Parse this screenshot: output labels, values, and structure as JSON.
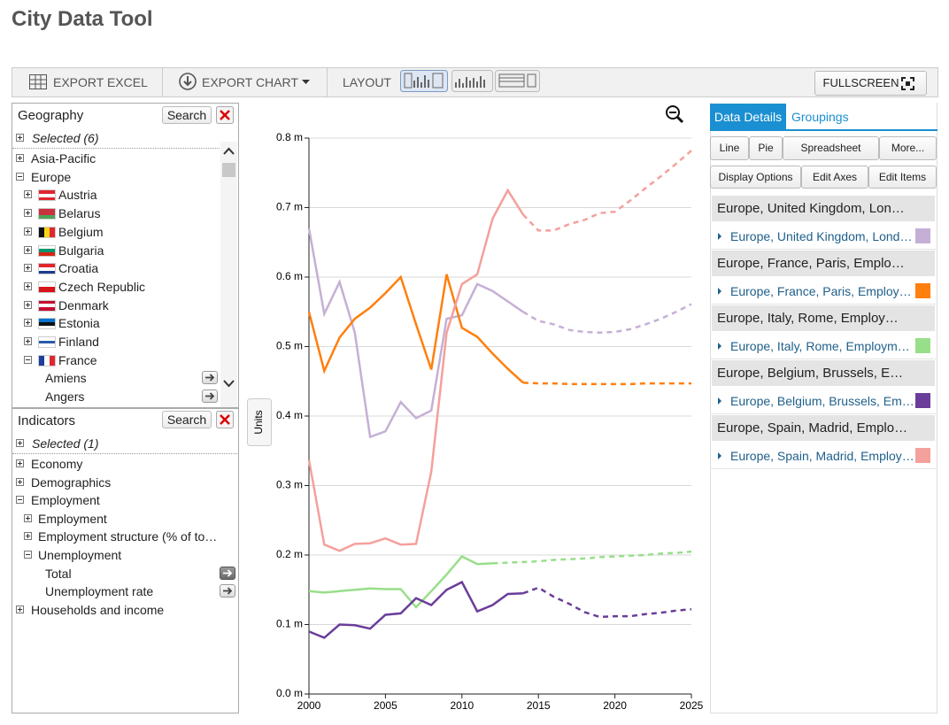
{
  "header": {
    "title": "City Data Tool"
  },
  "toolbar": {
    "export_excel": "EXPORT EXCEL",
    "export_chart": "EXPORT CHART",
    "layout": "LAYOUT",
    "fullscreen": "FULLSCREEN"
  },
  "geography": {
    "title": "Geography",
    "search": "Search",
    "selected": "Selected (6)",
    "items": [
      {
        "label": "Asia-Pacific"
      },
      {
        "label": "Europe",
        "children": [
          {
            "label": "Austria",
            "flag": {
              "dir": "h",
              "colors": [
                "#e0262f",
                "#ffffff",
                "#e0262f"
              ]
            }
          },
          {
            "label": "Belarus",
            "flag": {
              "dir": "h",
              "colors": [
                "#c8313e",
                "#c8313e",
                "#4aa657"
              ]
            }
          },
          {
            "label": "Belgium",
            "flag": {
              "dir": "v",
              "colors": [
                "#111111",
                "#f7d417",
                "#e0262f"
              ]
            }
          },
          {
            "label": "Bulgaria",
            "flag": {
              "dir": "h",
              "colors": [
                "#ffffff",
                "#00966e",
                "#d62612"
              ]
            }
          },
          {
            "label": "Croatia",
            "flag": {
              "dir": "h",
              "colors": [
                "#e0262f",
                "#ffffff",
                "#1a3d8f"
              ]
            }
          },
          {
            "label": "Czech Republic",
            "flag": {
              "dir": "h",
              "colors": [
                "#ffffff",
                "#d7141a"
              ]
            }
          },
          {
            "label": "Denmark",
            "flag": {
              "dir": "h",
              "colors": [
                "#c60c30",
                "#ffffff",
                "#c60c30"
              ]
            }
          },
          {
            "label": "Estonia",
            "flag": {
              "dir": "h",
              "colors": [
                "#0072ce",
                "#111111",
                "#ffffff"
              ]
            }
          },
          {
            "label": "Finland",
            "flag": {
              "dir": "h",
              "colors": [
                "#ffffff",
                "#2a5aa8",
                "#ffffff"
              ]
            }
          },
          {
            "label": "France",
            "flag": {
              "dir": "v",
              "colors": [
                "#1f3f9c",
                "#ffffff",
                "#e0262f"
              ]
            },
            "children": [
              {
                "label": "Amiens",
                "leaf": true
              },
              {
                "label": "Angers",
                "leaf": true
              }
            ]
          }
        ]
      }
    ]
  },
  "indicators": {
    "title": "Indicators",
    "search": "Search",
    "selected": "Selected (1)",
    "items": [
      {
        "label": "Economy"
      },
      {
        "label": "Demographics"
      },
      {
        "label": "Employment",
        "children": [
          {
            "label": "Employment"
          },
          {
            "label": "Employment structure (% of to…"
          },
          {
            "label": "Unemployment",
            "children": [
              {
                "label": "Total",
                "leaf": true,
                "active": true
              },
              {
                "label": "Unemployment rate",
                "leaf": true
              }
            ]
          }
        ]
      },
      {
        "label": "Households and income"
      }
    ]
  },
  "right_panel": {
    "tabs": [
      "Data Details",
      "Groupings"
    ],
    "buttons_row1": [
      "Line",
      "Pie",
      "Spreadsheet",
      "More..."
    ],
    "buttons_row2": [
      "Display Options",
      "Edit Axes",
      "Edit Items"
    ],
    "group_headers": [
      "Europe, United Kingdom, Lon…",
      "Europe, France, Paris, Emplo…",
      "Europe, Italy, Rome, Employ…",
      "Europe, Belgium, Brussels, E…",
      "Europe, Spain, Madrid, Emplo…"
    ]
  },
  "chart_data": {
    "type": "line",
    "ylabel": "Units",
    "x": [
      2000,
      2001,
      2002,
      2003,
      2004,
      2005,
      2006,
      2007,
      2008,
      2009,
      2010,
      2011,
      2012,
      2013,
      2014,
      2015,
      2016,
      2017,
      2018,
      2019,
      2020,
      2021,
      2022,
      2023,
      2024,
      2025
    ],
    "xlim": [
      2000,
      2025
    ],
    "xticks": [
      2000,
      2005,
      2010,
      2015,
      2020,
      2025
    ],
    "ylim": [
      0,
      0.8
    ],
    "yticks": [
      {
        "value": 0,
        "label": "0.0 m"
      },
      {
        "value": 0.1,
        "label": "0.1 m"
      },
      {
        "value": 0.2,
        "label": "0.2 m"
      },
      {
        "value": 0.3,
        "label": "0.3 m"
      },
      {
        "value": 0.4,
        "label": "0.4 m"
      },
      {
        "value": 0.5,
        "label": "0.5 m"
      },
      {
        "value": 0.6,
        "label": "0.6 m"
      },
      {
        "value": 0.7,
        "label": "0.7 m"
      },
      {
        "value": 0.8,
        "label": "0.8 m"
      }
    ],
    "grid": true,
    "series": [
      {
        "name": "Europe, United Kingdom, Lond…",
        "color": "#c5b0d5",
        "values": [
          0.67,
          0.547,
          0.593,
          0.52,
          0.37,
          0.378,
          0.42,
          0.397,
          0.408,
          0.54,
          0.545,
          0.59,
          0.58,
          0.565,
          0.55,
          null,
          null,
          null,
          null,
          null,
          null,
          null,
          null,
          null,
          null,
          null
        ],
        "projected": [
          null,
          null,
          null,
          null,
          null,
          null,
          null,
          null,
          null,
          null,
          null,
          null,
          null,
          null,
          0.55,
          0.537,
          0.532,
          0.524,
          0.521,
          0.52,
          0.521,
          0.525,
          0.532,
          0.54,
          0.55,
          0.561
        ]
      },
      {
        "name": "Europe, France, Paris, Employ…",
        "color": "#ff7f0e",
        "values": [
          0.55,
          0.465,
          0.513,
          0.54,
          0.556,
          0.577,
          0.6,
          0.532,
          0.467,
          0.604,
          0.527,
          0.514,
          0.49,
          0.468,
          0.448,
          null,
          null,
          null,
          null,
          null,
          null,
          null,
          null,
          null,
          null,
          null
        ],
        "projected": [
          null,
          null,
          null,
          null,
          null,
          null,
          null,
          null,
          null,
          null,
          null,
          null,
          null,
          null,
          0.448,
          0.447,
          0.447,
          0.446,
          0.446,
          0.446,
          0.446,
          0.446,
          0.447,
          0.447,
          0.447,
          0.447
        ]
      },
      {
        "name": "Europe, Italy, Rome, Employm…",
        "color": "#98df8a",
        "values": [
          0.148,
          0.146,
          0.148,
          0.15,
          0.152,
          0.151,
          0.151,
          0.125,
          0.148,
          0.172,
          0.198,
          0.187,
          0.188,
          null,
          null,
          null,
          null,
          null,
          null,
          null,
          null,
          null,
          null,
          null,
          null,
          null
        ],
        "projected": [
          null,
          null,
          null,
          null,
          null,
          null,
          null,
          null,
          null,
          null,
          null,
          null,
          0.188,
          0.189,
          0.19,
          0.191,
          0.193,
          0.194,
          0.195,
          0.197,
          0.198,
          0.199,
          0.2,
          0.202,
          0.203,
          0.205
        ]
      },
      {
        "name": "Europe, Belgium, Brussels, Em…",
        "color": "#6a3d9a",
        "values": [
          0.09,
          0.081,
          0.1,
          0.099,
          0.094,
          0.114,
          0.116,
          0.138,
          0.128,
          0.15,
          0.161,
          0.119,
          0.128,
          0.144,
          0.145,
          null,
          null,
          null,
          null,
          null,
          null,
          null,
          null,
          null,
          null,
          null
        ],
        "projected": [
          null,
          null,
          null,
          null,
          null,
          null,
          null,
          null,
          null,
          null,
          null,
          null,
          null,
          null,
          0.145,
          0.153,
          0.14,
          0.13,
          0.118,
          0.111,
          0.112,
          0.112,
          0.115,
          0.117,
          0.12,
          0.122
        ]
      },
      {
        "name": "Europe, Spain, Madrid, Employ…",
        "color": "#f4a09c",
        "values": [
          0.337,
          0.215,
          0.206,
          0.216,
          0.217,
          0.224,
          0.215,
          0.216,
          0.32,
          0.52,
          0.59,
          0.604,
          0.684,
          0.725,
          0.69,
          null,
          null,
          null,
          null,
          null,
          null,
          null,
          null,
          null,
          null,
          null
        ],
        "projected": [
          null,
          null,
          null,
          null,
          null,
          null,
          null,
          null,
          null,
          null,
          null,
          null,
          null,
          null,
          0.69,
          0.667,
          0.667,
          0.676,
          0.682,
          0.692,
          0.694,
          0.71,
          0.728,
          0.745,
          0.763,
          0.782
        ]
      }
    ]
  }
}
